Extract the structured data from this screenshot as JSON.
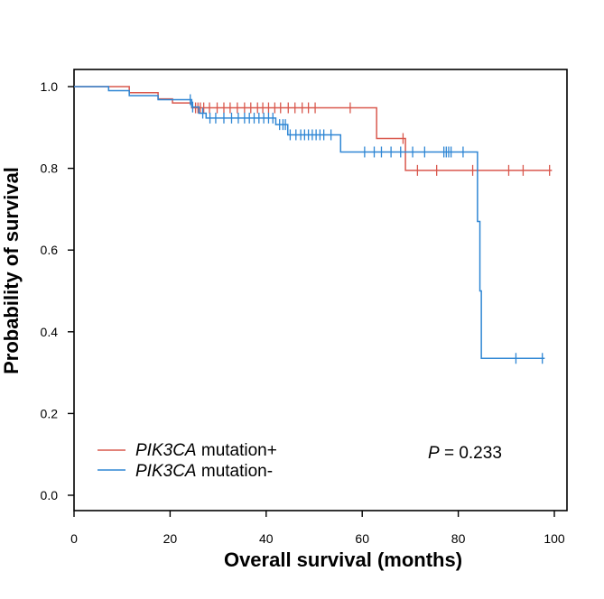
{
  "chart_data": {
    "type": "line",
    "subtype": "kaplan-meier",
    "xlabel": "Overall survival (months)",
    "ylabel": "Probability of survival",
    "xlim": [
      0,
      100
    ],
    "ylim": [
      0.0,
      1.0
    ],
    "xticks": [
      "0",
      "20",
      "40",
      "60",
      "80",
      "100"
    ],
    "yticks": [
      "0.0",
      "0.2",
      "0.4",
      "0.6",
      "0.8",
      "1.0"
    ],
    "legend_placement": "bottom-left",
    "series": [
      {
        "name_italic": "PIK3CA",
        "name_rest": " mutation+",
        "color": "#d9584d",
        "steps": [
          [
            0,
            1.0
          ],
          [
            11.5,
            0.985
          ],
          [
            17.5,
            0.97
          ],
          [
            20.5,
            0.96
          ],
          [
            24.5,
            0.948
          ],
          [
            63,
            0.873
          ],
          [
            69,
            0.795
          ],
          [
            99.5,
            0.795
          ]
        ],
        "censors": [
          [
            25.3,
            0.948
          ],
          [
            25.8,
            0.948
          ],
          [
            26.3,
            0.948
          ],
          [
            27,
            0.948
          ],
          [
            28.2,
            0.948
          ],
          [
            29.8,
            0.948
          ],
          [
            31.2,
            0.948
          ],
          [
            32.5,
            0.948
          ],
          [
            34,
            0.948
          ],
          [
            35.5,
            0.948
          ],
          [
            36.8,
            0.948
          ],
          [
            38.2,
            0.948
          ],
          [
            39.3,
            0.948
          ],
          [
            40.5,
            0.948
          ],
          [
            41.8,
            0.948
          ],
          [
            43,
            0.948
          ],
          [
            44.6,
            0.948
          ],
          [
            46,
            0.948
          ],
          [
            47.5,
            0.948
          ],
          [
            48.8,
            0.948
          ],
          [
            50.2,
            0.948
          ],
          [
            57.5,
            0.948
          ],
          [
            68.5,
            0.873
          ],
          [
            71.5,
            0.795
          ],
          [
            75.5,
            0.795
          ],
          [
            83,
            0.795
          ],
          [
            90.5,
            0.795
          ],
          [
            93.5,
            0.795
          ],
          [
            99,
            0.795
          ]
        ]
      },
      {
        "name_italic": "PIK3CA",
        "name_rest": " mutation-",
        "color": "#2e86d4",
        "steps": [
          [
            0,
            1.0
          ],
          [
            7.2,
            0.99
          ],
          [
            11.5,
            0.978
          ],
          [
            17.5,
            0.968
          ],
          [
            24.5,
            0.95
          ],
          [
            26,
            0.935
          ],
          [
            27.5,
            0.923
          ],
          [
            42,
            0.907
          ],
          [
            44.5,
            0.882
          ],
          [
            55.5,
            0.84
          ],
          [
            84,
            0.67
          ],
          [
            84.5,
            0.5
          ],
          [
            84.8,
            0.335
          ],
          [
            98,
            0.335
          ]
        ],
        "censors": [
          [
            24.2,
            0.968
          ],
          [
            24.7,
            0.95
          ],
          [
            26.8,
            0.935
          ],
          [
            28.3,
            0.923
          ],
          [
            29.5,
            0.923
          ],
          [
            31.2,
            0.923
          ],
          [
            32.8,
            0.923
          ],
          [
            34.2,
            0.923
          ],
          [
            35.5,
            0.923
          ],
          [
            36.5,
            0.923
          ],
          [
            37.5,
            0.923
          ],
          [
            38.5,
            0.923
          ],
          [
            39.5,
            0.923
          ],
          [
            40.5,
            0.923
          ],
          [
            41.4,
            0.923
          ],
          [
            42.8,
            0.907
          ],
          [
            43.5,
            0.907
          ],
          [
            44,
            0.907
          ],
          [
            45,
            0.882
          ],
          [
            46.2,
            0.882
          ],
          [
            47.2,
            0.882
          ],
          [
            48,
            0.882
          ],
          [
            48.8,
            0.882
          ],
          [
            49.6,
            0.882
          ],
          [
            50.4,
            0.882
          ],
          [
            51.2,
            0.882
          ],
          [
            52,
            0.882
          ],
          [
            53.5,
            0.882
          ],
          [
            60.5,
            0.84
          ],
          [
            62.5,
            0.84
          ],
          [
            64,
            0.84
          ],
          [
            66,
            0.84
          ],
          [
            68,
            0.84
          ],
          [
            70.5,
            0.84
          ],
          [
            73,
            0.84
          ],
          [
            77,
            0.84
          ],
          [
            77.5,
            0.84
          ],
          [
            78,
            0.84
          ],
          [
            78.5,
            0.84
          ],
          [
            81,
            0.84
          ],
          [
            92,
            0.335
          ],
          [
            97.5,
            0.335
          ]
        ]
      }
    ],
    "annotation": {
      "p_italic": "P",
      "p_rest": " = 0.233"
    }
  }
}
